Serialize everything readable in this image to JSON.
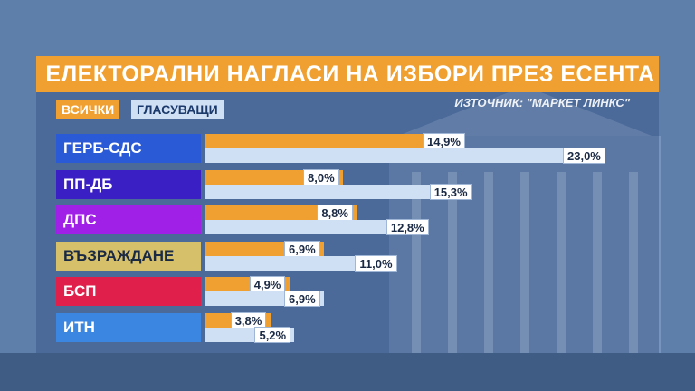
{
  "colors": {
    "accent": "#f0a030",
    "voters": "#cfe0f4"
  },
  "chart_data": {
    "type": "bar",
    "title": "ЕЛЕКТОРАЛНИ НАГЛАСИ НА ИЗБОРИ ПРЕЗ ЕСЕНТА",
    "source": "ИЗТОЧНИК: \"МАРКЕТ ЛИНКС\"",
    "legend": [
      "ВСИЧКИ",
      "ГЛАСУВАЩИ"
    ],
    "categories": [
      "ГЕРБ-СДС",
      "ПП-ДБ",
      "ДПС",
      "ВЪЗРАЖДАНЕ",
      "БСП",
      "ИТН"
    ],
    "category_colors": [
      "#2a5ad6",
      "#3a1fc4",
      "#a020e8",
      "#d6c06a",
      "#e0204a",
      "#3a86e0"
    ],
    "series": [
      {
        "name": "ВСИЧКИ",
        "values": [
          14.9,
          8.0,
          8.8,
          6.9,
          4.9,
          3.8
        ],
        "labels": [
          "14,9%",
          "8,0%",
          "8,8%",
          "6,9%",
          "4,9%",
          "3,8%"
        ]
      },
      {
        "name": "ГЛАСУВАЩИ",
        "values": [
          23.0,
          15.3,
          12.8,
          11.0,
          6.9,
          5.2
        ],
        "labels": [
          "23,0%",
          "15,3%",
          "12,8%",
          "11,0%",
          "6,9%",
          "5,2%"
        ]
      }
    ],
    "xlim": [
      0,
      23.0
    ]
  }
}
